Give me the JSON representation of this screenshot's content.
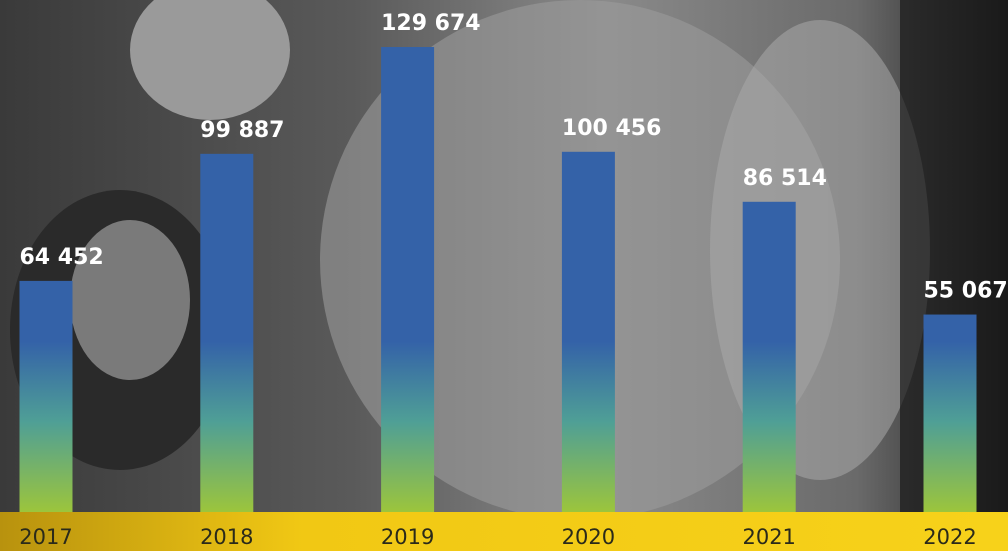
{
  "chart_data": {
    "type": "bar",
    "categories": [
      "2017",
      "2018",
      "2019",
      "2020",
      "2021",
      "2022"
    ],
    "values": [
      64452,
      99887,
      129674,
      100456,
      86514,
      55067
    ],
    "value_labels": [
      "64 452",
      "99 887",
      "129 674",
      "100 456",
      "86 514",
      "55 067"
    ],
    "color": "#3462a8",
    "ylim": [
      0,
      140000
    ]
  }
}
